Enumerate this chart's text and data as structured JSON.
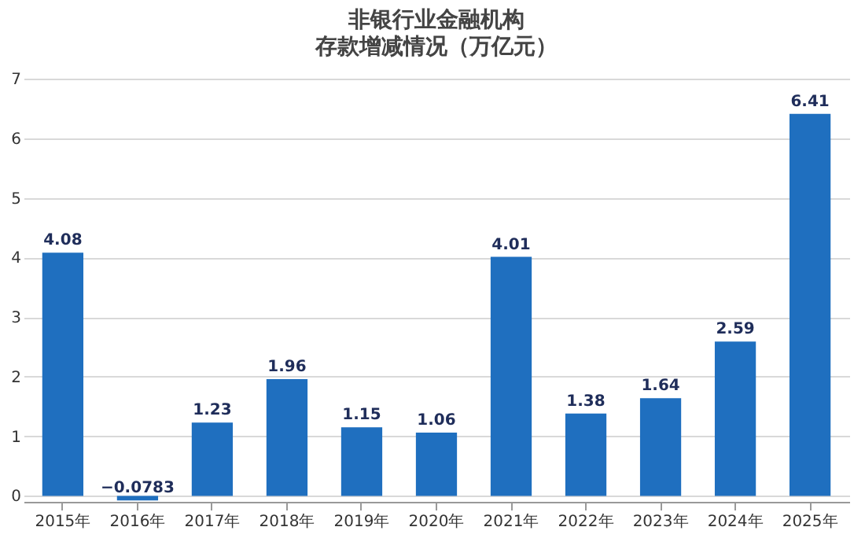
{
  "chart_data": {
    "type": "bar",
    "title": "非银行业金融机构",
    "subtitle": "存款增减情况（万亿元）",
    "categories": [
      "2015年",
      "2016年",
      "2017年",
      "2018年",
      "2019年",
      "2020年",
      "2021年",
      "2022年",
      "2023年",
      "2024年",
      "2025年"
    ],
    "values": [
      4.08,
      -0.0783,
      1.23,
      1.96,
      1.15,
      1.06,
      4.01,
      1.38,
      1.64,
      2.59,
      6.41
    ],
    "color": "#1f6fbf",
    "ylim": [
      -0.1,
      7
    ],
    "yticks": [
      0,
      1,
      2,
      3,
      4,
      5,
      6,
      7
    ],
    "grid": "y",
    "data_labels": true
  }
}
